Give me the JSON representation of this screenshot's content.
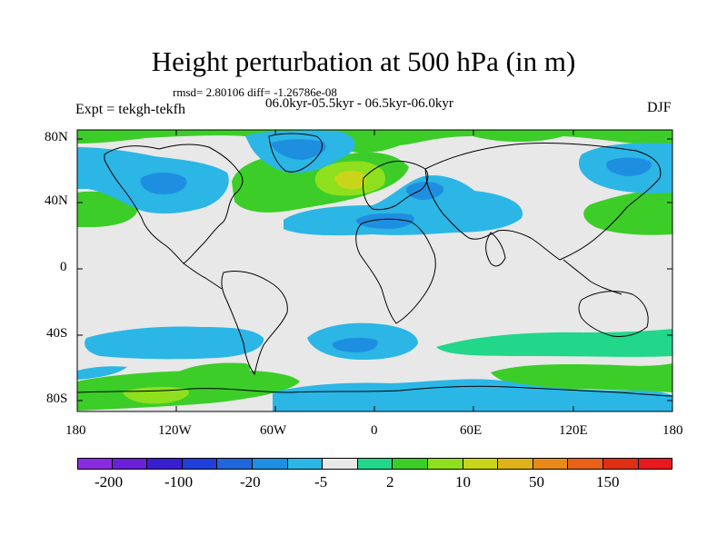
{
  "title": "Height perturbation at 500 hPa (in m)",
  "stats": "rmsd= 2.80106 diff= -1.26786e-08",
  "period": "06.0kyr-05.5kyr - 06.5kyr-06.0kyr",
  "experiment": "Expt = tekgh-tekfh",
  "season": "DJF",
  "y_axis_labels": [
    "80N",
    "40N",
    "0",
    "40S",
    "80S"
  ],
  "x_axis_labels": [
    "180",
    "120W",
    "60W",
    "0",
    "60E",
    "120E",
    "180"
  ],
  "colorbar": {
    "colors": [
      "#8a2be2",
      "#6a1fd8",
      "#3a1fd0",
      "#1f3fd8",
      "#1f66d8",
      "#1e8fe0",
      "#2bb6e6",
      "#e8e8e8",
      "#22d68a",
      "#3ccd28",
      "#8ee01e",
      "#c8d61a",
      "#e0b21a",
      "#e88a1a",
      "#e8621a",
      "#e02f14",
      "#e8181e"
    ],
    "labels": [
      "-200",
      "-100",
      "-20",
      "-5",
      "2",
      "10",
      "50",
      "150"
    ]
  },
  "field_colors": {
    "background": "#e8e8e8",
    "neg_weak": "#2bb6e6",
    "neg_mid": "#1e8fe0",
    "pos_weak": "#22d68a",
    "pos_mid": "#3ccd28",
    "pos_strong": "#8ee01e",
    "pos_peak": "#c8d61a"
  }
}
